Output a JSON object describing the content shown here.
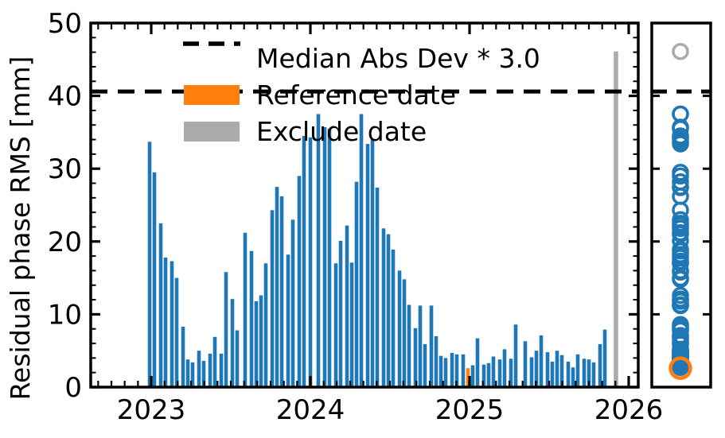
{
  "figure": {
    "background": "#ffffff",
    "ylabel": "Residual phase RMS [mm]",
    "legend": {
      "mad_label": "Median Abs Dev * 3.0",
      "reference_label": "Reference date",
      "exclude_label": "Exclude date"
    },
    "colors": {
      "bar": "#1f77b4",
      "reference": "#ff7f0e",
      "exclude": "#ababab",
      "mad_line": "#000000",
      "axis": "#000000",
      "tick_label": "#000000"
    }
  },
  "chart_data": {
    "type": "bar",
    "title": "",
    "xlabel": "",
    "ylabel": "Residual phase RMS [mm]",
    "xlim": [
      2022.62,
      2026.06
    ],
    "ylim": [
      0,
      50
    ],
    "xticks": [
      2023,
      2024,
      2025,
      2026
    ],
    "yticks": [
      0,
      10,
      20,
      30,
      40,
      50
    ],
    "grid": false,
    "legend_position": "upper-center-frameless",
    "mad_threshold": 40.6,
    "bars": [
      {
        "x": 2022.99,
        "v": 33.7
      },
      {
        "x": 2023.02,
        "v": 29.5
      },
      {
        "x": 2023.06,
        "v": 22.5
      },
      {
        "x": 2023.09,
        "v": 17.8
      },
      {
        "x": 2023.13,
        "v": 17.3
      },
      {
        "x": 2023.16,
        "v": 15.0
      },
      {
        "x": 2023.2,
        "v": 8.3
      },
      {
        "x": 2023.23,
        "v": 3.8
      },
      {
        "x": 2023.26,
        "v": 3.4
      },
      {
        "x": 2023.3,
        "v": 5.0
      },
      {
        "x": 2023.33,
        "v": 3.6
      },
      {
        "x": 2023.37,
        "v": 4.6
      },
      {
        "x": 2023.4,
        "v": 6.9
      },
      {
        "x": 2023.44,
        "v": 4.6
      },
      {
        "x": 2023.47,
        "v": 15.8
      },
      {
        "x": 2023.51,
        "v": 12.1
      },
      {
        "x": 2023.54,
        "v": 7.8
      },
      {
        "x": 2023.59,
        "v": 21.2
      },
      {
        "x": 2023.63,
        "v": 18.7
      },
      {
        "x": 2023.66,
        "v": 11.8
      },
      {
        "x": 2023.69,
        "v": 12.6
      },
      {
        "x": 2023.72,
        "v": 17.0
      },
      {
        "x": 2023.76,
        "v": 24.3
      },
      {
        "x": 2023.79,
        "v": 27.5
      },
      {
        "x": 2023.82,
        "v": 26.2
      },
      {
        "x": 2023.86,
        "v": 18.2
      },
      {
        "x": 2023.89,
        "v": 23.0
      },
      {
        "x": 2023.93,
        "v": 29.0
      },
      {
        "x": 2023.96,
        "v": 34.5
      },
      {
        "x": 2024.0,
        "v": 34.3
      },
      {
        "x": 2024.05,
        "v": 37.5
      },
      {
        "x": 2024.09,
        "v": 35.7
      },
      {
        "x": 2024.12,
        "v": 35.5
      },
      {
        "x": 2024.16,
        "v": 17.0
      },
      {
        "x": 2024.19,
        "v": 20.1
      },
      {
        "x": 2024.23,
        "v": 22.2
      },
      {
        "x": 2024.26,
        "v": 17.1
      },
      {
        "x": 2024.29,
        "v": 28.2
      },
      {
        "x": 2024.32,
        "v": 37.5
      },
      {
        "x": 2024.36,
        "v": 33.4
      },
      {
        "x": 2024.39,
        "v": 34.0
      },
      {
        "x": 2024.42,
        "v": 27.4
      },
      {
        "x": 2024.46,
        "v": 21.8
      },
      {
        "x": 2024.49,
        "v": 21.0
      },
      {
        "x": 2024.52,
        "v": 18.9
      },
      {
        "x": 2024.56,
        "v": 16.0
      },
      {
        "x": 2024.59,
        "v": 14.8
      },
      {
        "x": 2024.62,
        "v": 11.3
      },
      {
        "x": 2024.66,
        "v": 8.1
      },
      {
        "x": 2024.69,
        "v": 11.2
      },
      {
        "x": 2024.72,
        "v": 5.9
      },
      {
        "x": 2024.76,
        "v": 11.2
      },
      {
        "x": 2024.79,
        "v": 7.0
      },
      {
        "x": 2024.82,
        "v": 4.3
      },
      {
        "x": 2024.85,
        "v": 4.0
      },
      {
        "x": 2024.89,
        "v": 4.7
      },
      {
        "x": 2024.92,
        "v": 4.5
      },
      {
        "x": 2024.96,
        "v": 4.5
      },
      {
        "x": 2025.02,
        "v": 3.0
      },
      {
        "x": 2025.05,
        "v": 6.7
      },
      {
        "x": 2025.09,
        "v": 3.1
      },
      {
        "x": 2025.12,
        "v": 3.3
      },
      {
        "x": 2025.15,
        "v": 4.2
      },
      {
        "x": 2025.19,
        "v": 3.8
      },
      {
        "x": 2025.22,
        "v": 5.2
      },
      {
        "x": 2025.26,
        "v": 3.9
      },
      {
        "x": 2025.29,
        "v": 8.6
      },
      {
        "x": 2025.35,
        "v": 6.3
      },
      {
        "x": 2025.39,
        "v": 4.1
      },
      {
        "x": 2025.42,
        "v": 5.0
      },
      {
        "x": 2025.45,
        "v": 7.1
      },
      {
        "x": 2025.49,
        "v": 4.8
      },
      {
        "x": 2025.52,
        "v": 3.5
      },
      {
        "x": 2025.55,
        "v": 5.0
      },
      {
        "x": 2025.58,
        "v": 4.4
      },
      {
        "x": 2025.62,
        "v": 3.5
      },
      {
        "x": 2025.65,
        "v": 2.7
      },
      {
        "x": 2025.68,
        "v": 4.5
      },
      {
        "x": 2025.72,
        "v": 3.9
      },
      {
        "x": 2025.75,
        "v": 3.8
      },
      {
        "x": 2025.78,
        "v": 3.4
      },
      {
        "x": 2025.82,
        "v": 5.9
      },
      {
        "x": 2025.85,
        "v": 7.9
      }
    ],
    "reference_bar": {
      "x": 2024.99,
      "v": 2.6
    },
    "exclude_bar": {
      "x": 2025.92,
      "v": 46.1
    },
    "side_panel": {
      "type": "scatter",
      "marker": "open-circle",
      "blue_values_source": "bars",
      "reference_value": 2.6,
      "exclude_value": 46.1,
      "mad_threshold": 40.6
    }
  }
}
